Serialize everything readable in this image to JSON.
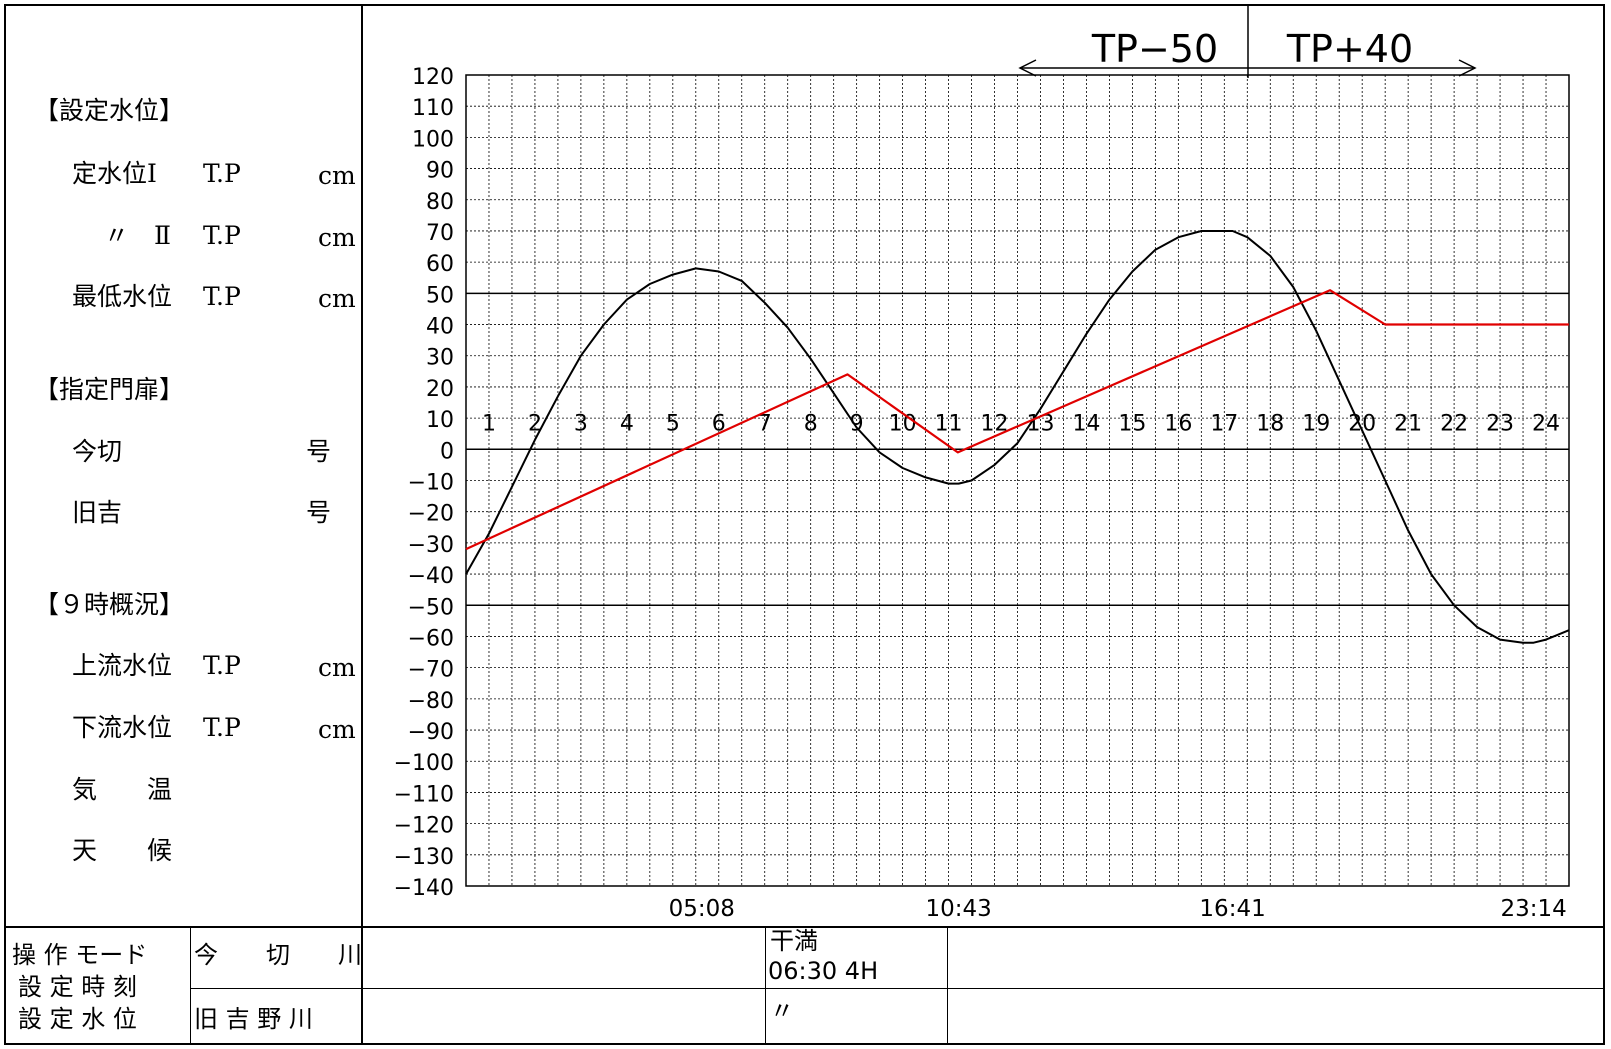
{
  "left_panel": {
    "setting_header": "【設定水位】",
    "rows_setting": [
      {
        "label": "定水位Ⅰ",
        "tp": "T.P",
        "unit": "cm"
      },
      {
        "label": "〃　Ⅱ",
        "tp": "T.P",
        "unit": "cm"
      },
      {
        "label": "最低水位",
        "tp": "T.P",
        "unit": "cm"
      }
    ],
    "gate_header": "【指定門扉】",
    "rows_gate": [
      {
        "label": "今切",
        "unit": "号"
      },
      {
        "label": "旧吉",
        "unit": "号"
      }
    ],
    "status_header": "【９時概況】",
    "rows_status": [
      {
        "label": "上流水位",
        "tp": "T.P",
        "unit": "cm"
      },
      {
        "label": "下流水位",
        "tp": "T.P",
        "unit": "cm"
      },
      {
        "label": "気　　温"
      },
      {
        "label": "天　　候"
      }
    ]
  },
  "bottom": {
    "op_mode": "操 作 モード",
    "set_time": "設 定 時 刻",
    "set_level": "設 定 水 位",
    "river1": "今　　切　　川",
    "river2": "旧 吉 野 川",
    "tide_label": "干満",
    "tide_value": "06:30 4H",
    "ditto": "〃"
  },
  "chart_data": {
    "type": "line",
    "xlim": [
      0,
      24
    ],
    "ylim": [
      -140,
      120
    ],
    "yticks": [
      120,
      110,
      100,
      90,
      80,
      70,
      60,
      50,
      40,
      30,
      20,
      10,
      0,
      -10,
      -20,
      -30,
      -40,
      -50,
      -60,
      -70,
      -80,
      -90,
      -100,
      -110,
      -120,
      -130,
      -140
    ],
    "hour_labels": [
      "1",
      "2",
      "3",
      "4",
      "5",
      "6",
      "7",
      "8",
      "9",
      "10",
      "11",
      "12",
      "13",
      "14",
      "15",
      "16",
      "17",
      "18",
      "19",
      "20",
      "21",
      "22",
      "23",
      "24"
    ],
    "time_labels": [
      {
        "text": "05:08",
        "x": 5.13
      },
      {
        "text": "10:43",
        "x": 10.72
      },
      {
        "text": "16:41",
        "x": 16.68
      },
      {
        "text": "23:14",
        "x": 23.23
      }
    ],
    "reference_lines": [
      50,
      0,
      -50
    ],
    "annotations": [
      {
        "text": "TP−50",
        "direction": "left"
      },
      {
        "text": "TP+40",
        "direction": "right"
      }
    ],
    "series": [
      {
        "color": "#000000",
        "x": [
          0,
          0.5,
          1,
          1.5,
          2,
          2.5,
          3,
          3.5,
          4,
          4.5,
          5,
          5.5,
          6,
          6.5,
          7,
          7.5,
          8,
          8.5,
          9,
          9.5,
          10,
          10.5,
          10.72,
          11,
          11.5,
          12,
          12.5,
          13,
          13.5,
          14,
          14.5,
          15,
          15.5,
          16,
          16.5,
          16.68,
          17,
          17.5,
          18,
          18.5,
          19,
          19.5,
          20,
          20.5,
          21,
          21.5,
          22,
          22.5,
          23,
          23.23,
          23.5,
          24
        ],
        "y": [
          -40,
          -27,
          -12,
          3,
          17,
          30,
          40,
          48,
          53,
          56,
          58,
          57,
          54,
          47,
          39,
          29,
          18,
          7,
          -1,
          -6,
          -9,
          -11,
          -11,
          -10,
          -5,
          2,
          13,
          25,
          37,
          48,
          57,
          64,
          68,
          70,
          70,
          70,
          68,
          62,
          52,
          38,
          22,
          6,
          -10,
          -26,
          -40,
          -50,
          -57,
          -61,
          -62,
          -62,
          -61,
          -58
        ]
      },
      {
        "color": "#e00000",
        "x": [
          0,
          8.3,
          10.7,
          18.8,
          20,
          24
        ],
        "y": [
          -32,
          24,
          -1,
          51,
          40,
          40
        ]
      }
    ]
  }
}
